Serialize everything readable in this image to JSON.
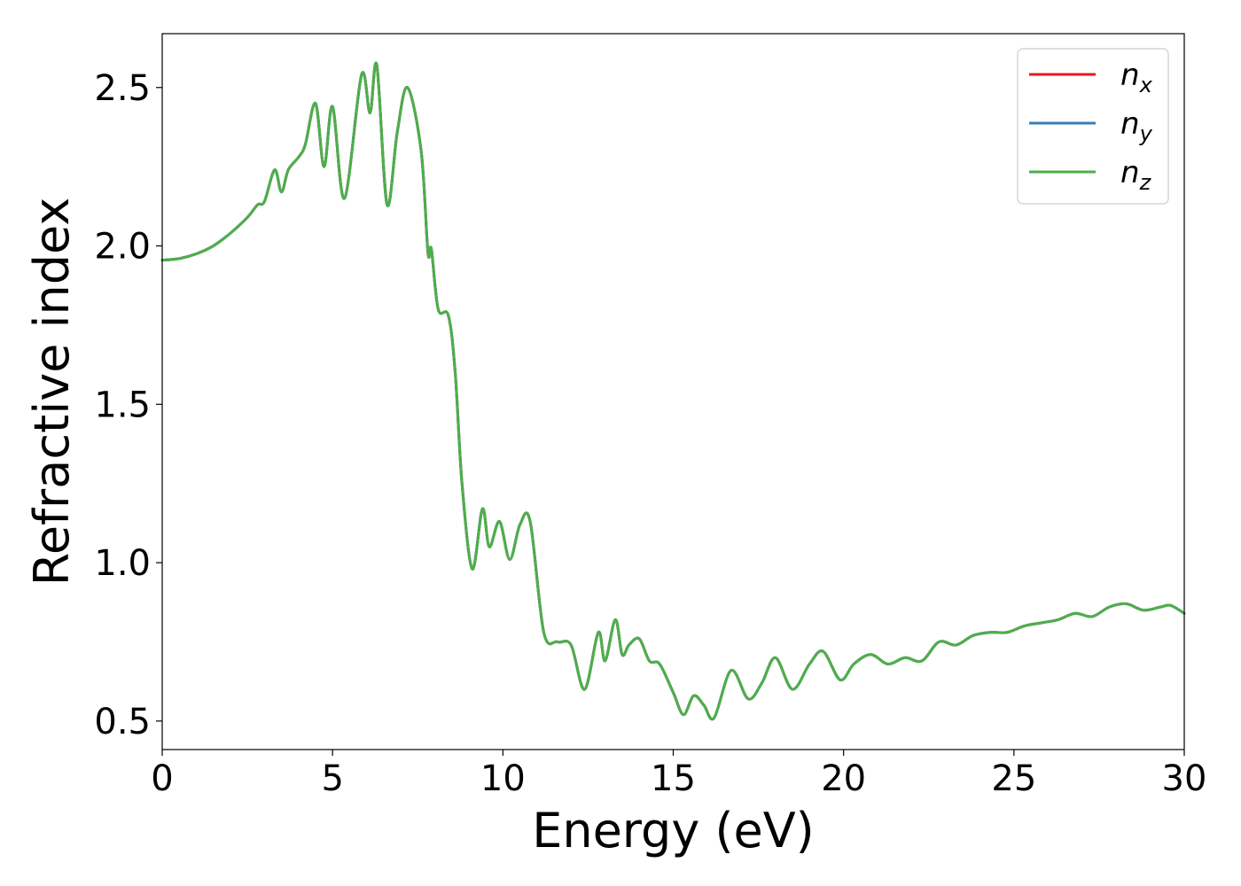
{
  "chart_data": {
    "type": "line",
    "xlabel": "Energy (eV)",
    "ylabel": "Refractive index",
    "xlim": [
      0,
      30
    ],
    "ylim": [
      0.41,
      2.67
    ],
    "xticks": [
      0,
      5,
      10,
      15,
      20,
      25,
      30
    ],
    "xtick_labels": [
      "0",
      "5",
      "10",
      "15",
      "20",
      "25",
      "30"
    ],
    "yticks": [
      0.5,
      1.0,
      1.5,
      2.0,
      2.5
    ],
    "ytick_labels": [
      "0.5",
      "1.0",
      "1.5",
      "2.0",
      "2.5"
    ],
    "grid": false,
    "legend_position": "top-right",
    "colors": {
      "nx": "#e41a1c",
      "ny": "#377eb8",
      "nz": "#4daf4a"
    },
    "x": [
      0,
      0.5,
      1,
      1.5,
      2,
      2.5,
      2.8,
      3.0,
      3.3,
      3.5,
      3.7,
      4.0,
      4.2,
      4.5,
      4.75,
      5.0,
      5.35,
      5.85,
      6.1,
      6.3,
      6.6,
      6.9,
      7.2,
      7.6,
      7.8,
      7.9,
      8.1,
      8.4,
      8.6,
      8.8,
      9.1,
      9.4,
      9.6,
      9.9,
      10.2,
      10.5,
      10.8,
      11.2,
      11.6,
      12.0,
      12.4,
      12.8,
      13.0,
      13.3,
      13.5,
      13.7,
      14.0,
      14.3,
      14.6,
      15.0,
      15.3,
      15.6,
      15.9,
      16.2,
      16.7,
      17.2,
      17.6,
      18.0,
      18.5,
      19.0,
      19.4,
      19.9,
      20.3,
      20.8,
      21.3,
      21.8,
      22.3,
      22.8,
      23.3,
      23.8,
      24.3,
      24.8,
      25.3,
      25.8,
      26.3,
      26.8,
      27.3,
      27.8,
      28.3,
      28.8,
      29.3,
      29.6,
      30.0
    ],
    "series": [
      {
        "name": "n_x",
        "values": [
          1.955,
          1.96,
          1.975,
          2.0,
          2.04,
          2.09,
          2.13,
          2.14,
          2.24,
          2.17,
          2.24,
          2.28,
          2.32,
          2.45,
          2.25,
          2.44,
          2.15,
          2.54,
          2.42,
          2.57,
          2.13,
          2.36,
          2.5,
          2.3,
          1.98,
          1.99,
          1.8,
          1.78,
          1.6,
          1.25,
          0.98,
          1.17,
          1.05,
          1.13,
          1.01,
          1.12,
          1.13,
          0.78,
          0.75,
          0.74,
          0.6,
          0.78,
          0.69,
          0.82,
          0.71,
          0.74,
          0.76,
          0.69,
          0.68,
          0.59,
          0.52,
          0.58,
          0.55,
          0.51,
          0.66,
          0.57,
          0.62,
          0.7,
          0.6,
          0.68,
          0.72,
          0.63,
          0.68,
          0.71,
          0.68,
          0.7,
          0.69,
          0.75,
          0.74,
          0.77,
          0.78,
          0.78,
          0.8,
          0.81,
          0.82,
          0.84,
          0.83,
          0.86,
          0.87,
          0.85,
          0.86,
          0.865,
          0.84
        ]
      },
      {
        "name": "n_y",
        "values": [
          1.955,
          1.96,
          1.975,
          2.0,
          2.04,
          2.09,
          2.13,
          2.14,
          2.24,
          2.17,
          2.24,
          2.28,
          2.32,
          2.45,
          2.25,
          2.44,
          2.15,
          2.54,
          2.42,
          2.57,
          2.13,
          2.36,
          2.5,
          2.3,
          1.98,
          1.99,
          1.8,
          1.78,
          1.6,
          1.25,
          0.98,
          1.17,
          1.05,
          1.13,
          1.01,
          1.12,
          1.13,
          0.78,
          0.75,
          0.74,
          0.6,
          0.78,
          0.69,
          0.82,
          0.71,
          0.74,
          0.76,
          0.69,
          0.68,
          0.59,
          0.52,
          0.58,
          0.55,
          0.51,
          0.66,
          0.57,
          0.62,
          0.7,
          0.6,
          0.68,
          0.72,
          0.63,
          0.68,
          0.71,
          0.68,
          0.7,
          0.69,
          0.75,
          0.74,
          0.77,
          0.78,
          0.78,
          0.8,
          0.81,
          0.82,
          0.84,
          0.83,
          0.86,
          0.87,
          0.85,
          0.86,
          0.865,
          0.84
        ]
      },
      {
        "name": "n_z",
        "values": [
          1.955,
          1.96,
          1.975,
          2.0,
          2.04,
          2.09,
          2.13,
          2.14,
          2.24,
          2.17,
          2.24,
          2.28,
          2.32,
          2.45,
          2.25,
          2.44,
          2.15,
          2.54,
          2.42,
          2.57,
          2.13,
          2.36,
          2.5,
          2.3,
          1.98,
          1.99,
          1.8,
          1.78,
          1.6,
          1.25,
          0.98,
          1.17,
          1.05,
          1.13,
          1.01,
          1.12,
          1.13,
          0.78,
          0.75,
          0.74,
          0.6,
          0.78,
          0.69,
          0.82,
          0.71,
          0.74,
          0.76,
          0.69,
          0.68,
          0.59,
          0.52,
          0.58,
          0.55,
          0.51,
          0.66,
          0.57,
          0.62,
          0.7,
          0.6,
          0.68,
          0.72,
          0.63,
          0.68,
          0.71,
          0.68,
          0.7,
          0.69,
          0.75,
          0.74,
          0.77,
          0.78,
          0.78,
          0.8,
          0.81,
          0.82,
          0.84,
          0.83,
          0.86,
          0.87,
          0.85,
          0.86,
          0.865,
          0.84
        ]
      }
    ],
    "legend": [
      {
        "key": "nx",
        "base": "n",
        "sub": "x"
      },
      {
        "key": "ny",
        "base": "n",
        "sub": "y"
      },
      {
        "key": "nz",
        "base": "n",
        "sub": "z"
      }
    ]
  }
}
